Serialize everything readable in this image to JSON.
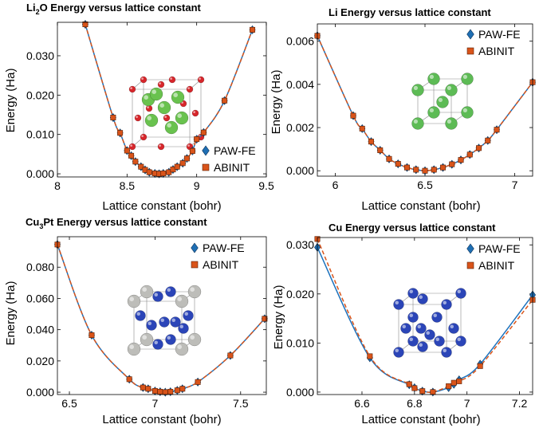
{
  "colors": {
    "paw": "#1F6FB4",
    "abinit": "#D9541A",
    "line_paw": "#1C72BD",
    "line_abinit": "#D9541A"
  },
  "chart_data": [
    {
      "type": "line",
      "title_main": "Li",
      "title_sub": "2",
      "title_rest": "O Energy versus lattice constant",
      "xlabel": "Lattice constant (bohr)",
      "ylabel": "Energy (Ha)",
      "xlim": [
        8.0,
        9.5
      ],
      "ylim": [
        -0.0008,
        0.0385
      ],
      "xticks": [
        8,
        8.5,
        9,
        9.5
      ],
      "xtick_labels": [
        "8",
        "8.5",
        "9",
        "9.5"
      ],
      "yticks": [
        0,
        0.01,
        0.02,
        0.03
      ],
      "ytick_labels": [
        "0.000",
        "0.010",
        "0.020",
        "0.030"
      ],
      "legend_position": "bottom-right",
      "inset": "Li2O crystal",
      "series": [
        {
          "name": "PAW-FE",
          "marker": "diamond",
          "x": [
            8.2,
            8.4,
            8.45,
            8.5,
            8.53,
            8.56,
            8.6,
            8.63,
            8.66,
            8.7,
            8.73,
            8.76,
            8.8,
            8.83,
            8.86,
            8.9,
            8.93,
            8.97,
            9.0,
            9.05,
            9.2,
            9.4
          ],
          "y": [
            0.038,
            0.0143,
            0.0104,
            0.0059,
            0.0046,
            0.0031,
            0.0018,
            0.001,
            0.0004,
            0.0001,
            0.0,
            0.0001,
            0.0004,
            0.0011,
            0.0018,
            0.0027,
            0.0039,
            0.0058,
            0.0088,
            0.0105,
            0.0186,
            0.0366
          ]
        },
        {
          "name": "ABINIT",
          "marker": "square",
          "x": [
            8.2,
            8.4,
            8.45,
            8.5,
            8.53,
            8.56,
            8.6,
            8.63,
            8.66,
            8.7,
            8.73,
            8.76,
            8.8,
            8.83,
            8.86,
            8.9,
            8.93,
            8.97,
            9.0,
            9.05,
            9.2,
            9.4
          ],
          "y": [
            0.038,
            0.0143,
            0.0104,
            0.0059,
            0.0046,
            0.0031,
            0.0018,
            0.001,
            0.0004,
            0.0001,
            0.0,
            0.0001,
            0.0004,
            0.0011,
            0.0018,
            0.0027,
            0.0039,
            0.0058,
            0.0088,
            0.0105,
            0.0186,
            0.0366
          ]
        }
      ]
    },
    {
      "type": "line",
      "title_main": "Li Energy versus lattice constant",
      "title_sub": "",
      "title_rest": "",
      "xlabel": "Lattice constant (bohr)",
      "ylabel": "Energy (Ha)",
      "xlim": [
        5.9,
        7.1
      ],
      "ylim": [
        -0.00025,
        0.0068
      ],
      "xticks": [
        6,
        6.5,
        7
      ],
      "xtick_labels": [
        "6",
        "6.5",
        "7"
      ],
      "yticks": [
        0,
        0.002,
        0.004,
        0.006
      ],
      "ytick_labels": [
        "0.000",
        "0.002",
        "0.004",
        "0.006"
      ],
      "legend_position": "top-right",
      "inset": "Li crystal",
      "series": [
        {
          "name": "PAW-FE",
          "marker": "diamond",
          "x": [
            5.9,
            6.1,
            6.15,
            6.2,
            6.25,
            6.3,
            6.35,
            6.4,
            6.45,
            6.5,
            6.55,
            6.6,
            6.65,
            6.7,
            6.75,
            6.8,
            6.85,
            6.9,
            7.1
          ],
          "y": [
            0.00625,
            0.00255,
            0.00195,
            0.00135,
            0.00095,
            0.00055,
            0.00032,
            0.00015,
            5e-05,
            0.0,
            5e-05,
            0.00015,
            0.0003,
            0.0005,
            0.00075,
            0.00105,
            0.0014,
            0.0019,
            0.0041
          ]
        },
        {
          "name": "ABINIT",
          "marker": "square",
          "x": [
            5.9,
            6.1,
            6.15,
            6.2,
            6.25,
            6.3,
            6.35,
            6.4,
            6.45,
            6.5,
            6.55,
            6.6,
            6.65,
            6.7,
            6.75,
            6.8,
            6.85,
            6.9,
            7.1
          ],
          "y": [
            0.00625,
            0.00255,
            0.00195,
            0.00135,
            0.00095,
            0.00055,
            0.00032,
            0.00015,
            5e-05,
            0.0,
            5e-05,
            0.00015,
            0.0003,
            0.0005,
            0.00075,
            0.00105,
            0.0014,
            0.0019,
            0.0041
          ]
        }
      ]
    },
    {
      "type": "line",
      "title_main": "Cu",
      "title_sub": "3",
      "title_rest": "Pt Energy versus lattice constant",
      "xlabel": "Lattice constant (bohr)",
      "ylabel": "Energy (Ha)",
      "xlim": [
        6.43,
        7.65
      ],
      "ylim": [
        -0.0015,
        0.0995
      ],
      "xticks": [
        6.5,
        7,
        7.5
      ],
      "xtick_labels": [
        "6.5",
        "7",
        "7.5"
      ],
      "yticks": [
        0,
        0.02,
        0.04,
        0.06,
        0.08
      ],
      "ytick_labels": [
        "0.000",
        "0.020",
        "0.040",
        "0.060",
        "0.080"
      ],
      "legend_position": "top-right",
      "inset": "Cu3Pt crystal",
      "series": [
        {
          "name": "PAW-FE",
          "marker": "diamond",
          "x": [
            6.43,
            6.63,
            6.85,
            6.93,
            6.96,
            7.0,
            7.03,
            7.06,
            7.09,
            7.13,
            7.16,
            7.25,
            7.44,
            7.64
          ],
          "y": [
            0.0945,
            0.0365,
            0.0083,
            0.003,
            0.0022,
            0.0008,
            0.0003,
            0.0,
            0.0003,
            0.0012,
            0.0022,
            0.0065,
            0.0235,
            0.047
          ]
        },
        {
          "name": "ABINIT",
          "marker": "square",
          "x": [
            6.43,
            6.63,
            6.85,
            6.93,
            6.96,
            7.0,
            7.03,
            7.06,
            7.09,
            7.13,
            7.16,
            7.25,
            7.44,
            7.64
          ],
          "y": [
            0.0945,
            0.0365,
            0.0083,
            0.003,
            0.0022,
            0.0008,
            0.0003,
            0.0,
            0.0003,
            0.0012,
            0.0022,
            0.0065,
            0.0235,
            0.047
          ]
        }
      ]
    },
    {
      "type": "line",
      "title_main": "Cu Energy versus lattice constant",
      "title_sub": "",
      "title_rest": "",
      "xlabel": "Lattice constant (bohr)",
      "ylabel": "Energy (Ha)",
      "xlim": [
        6.43,
        7.25
      ],
      "ylim": [
        -0.0005,
        0.0315
      ],
      "xticks": [
        6.6,
        6.8,
        7,
        7.2
      ],
      "xtick_labels": [
        "6.6",
        "6.8",
        "7",
        "7.2"
      ],
      "yticks": [
        0,
        0.01,
        0.02,
        0.03
      ],
      "ytick_labels": [
        "0.000",
        "0.010",
        "0.020",
        "0.030"
      ],
      "legend_position": "top-right",
      "inset": "Cu crystal",
      "series": [
        {
          "name": "PAW-FE",
          "marker": "diamond",
          "x": [
            6.43,
            6.63,
            6.78,
            6.8,
            6.83,
            6.87,
            6.93,
            6.95,
            6.97,
            7.05,
            7.25
          ],
          "y": [
            0.0295,
            0.007,
            0.0015,
            0.0009,
            0.0002,
            0.0,
            0.0009,
            0.0016,
            0.0025,
            0.0057,
            0.0198
          ]
        },
        {
          "name": "ABINIT",
          "marker": "square",
          "x": [
            6.43,
            6.63,
            6.78,
            6.8,
            6.83,
            6.87,
            6.93,
            6.95,
            6.97,
            7.05,
            7.25
          ],
          "y": [
            0.0312,
            0.0073,
            0.0016,
            0.0008,
            0.0002,
            0.0,
            0.0012,
            0.0019,
            0.0022,
            0.0053,
            0.0188
          ]
        }
      ]
    }
  ]
}
